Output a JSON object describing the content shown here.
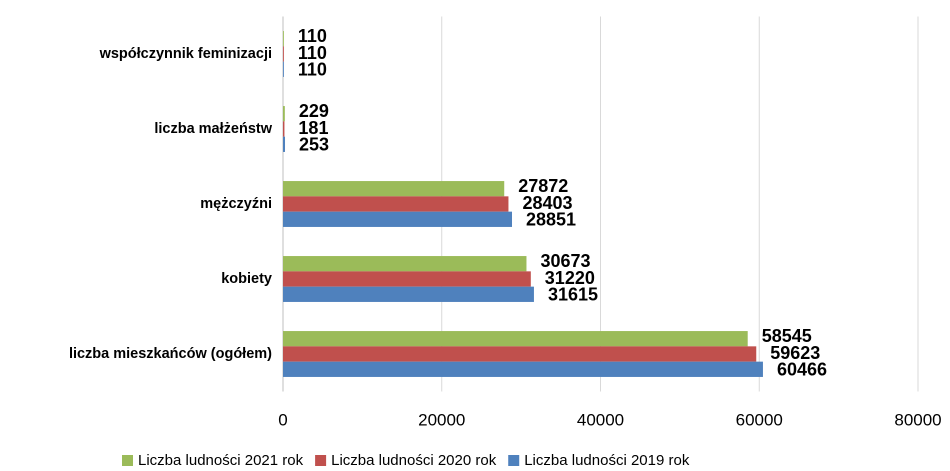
{
  "chart_data": {
    "type": "hbar",
    "categories": [
      "liczba mieszkańców (ogółem)",
      "kobiety",
      "mężczyźni",
      "liczba małżeństw",
      "współczynnik feminizacji"
    ],
    "series": [
      {
        "name": "Liczba ludności 2021 rok",
        "color": "#9bbb59",
        "values": [
          58545,
          30673,
          27872,
          229,
          110
        ]
      },
      {
        "name": "Liczba ludności 2020 rok",
        "color": "#c0504d",
        "values": [
          59623,
          31220,
          28403,
          181,
          110
        ]
      },
      {
        "name": "Liczba ludności 2019 rok",
        "color": "#4f81bd",
        "values": [
          60466,
          31615,
          28851,
          253,
          110
        ]
      }
    ],
    "xlim": [
      0,
      80000
    ],
    "xticks": [
      0,
      20000,
      40000,
      60000,
      80000
    ],
    "grid": true,
    "legend": "bottom"
  }
}
